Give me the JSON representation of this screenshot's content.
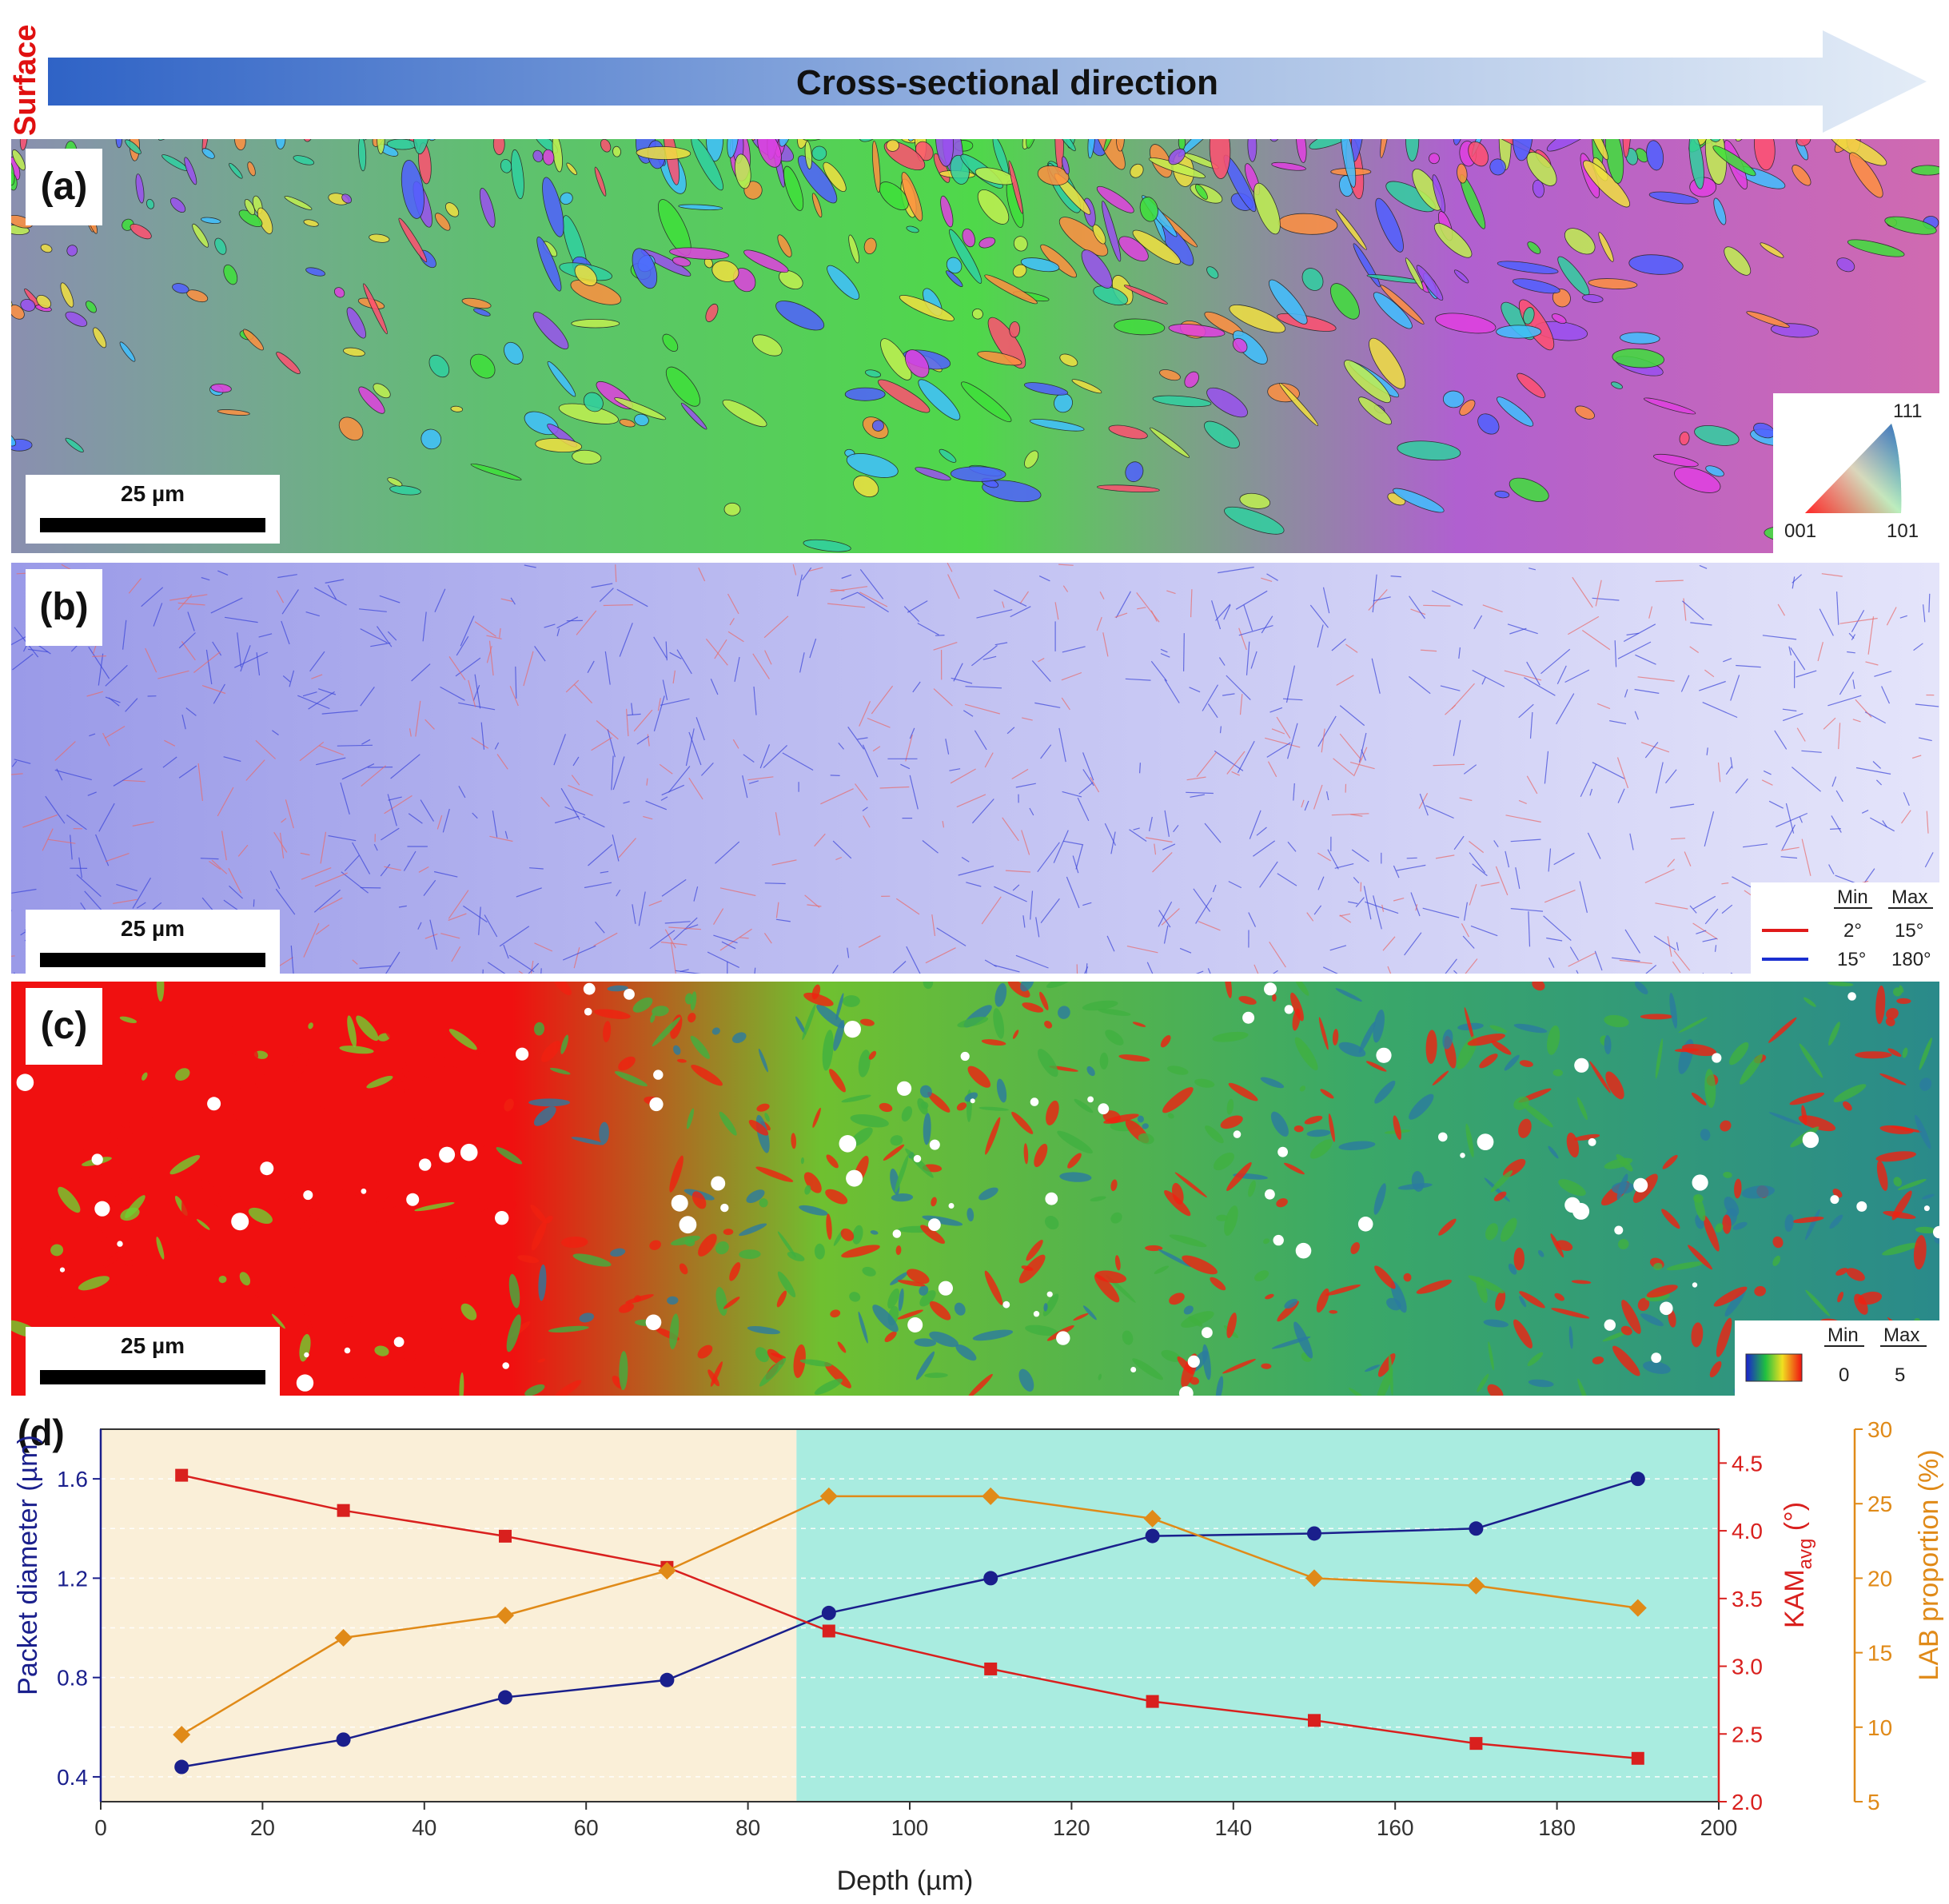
{
  "header": {
    "surface_label": "Surface",
    "arrow_label": "Cross-sectional direction"
  },
  "colors": {
    "arrow_start": "#2f63c6",
    "arrow_end": "#e3ecf7",
    "surface_red": "#e01010",
    "packet_blue": "#1a1f8c",
    "kam_red": "#d9201e",
    "lab_orange": "#e08a18",
    "fine_zone_bg": "#faefd8",
    "coarse_zone_bg": "#a9ece0"
  },
  "panels": {
    "a": {
      "letter": "(a)",
      "scalebar": "25 µm",
      "ipf_legend": {
        "top": "111",
        "left": "001",
        "right": "101"
      }
    },
    "b": {
      "letter": "(b)",
      "scalebar": "25 µm",
      "legend": {
        "col_min": "Min",
        "col_max": "Max",
        "rows": [
          {
            "min": "2°",
            "max": "15°",
            "color": "#e01a1a"
          },
          {
            "min": "15°",
            "max": "180°",
            "color": "#1a2fd0"
          }
        ]
      }
    },
    "c": {
      "letter": "(c)",
      "scalebar": "25 µm",
      "legend": {
        "col_min": "Min",
        "col_max": "Max",
        "min": "0",
        "max": "5"
      }
    }
  },
  "chart_data": {
    "type": "line",
    "panel_letter": "(d)",
    "x": [
      10,
      30,
      50,
      70,
      90,
      110,
      130,
      150,
      170,
      190
    ],
    "xlabel": "Depth (µm)",
    "xlim": [
      0,
      200
    ],
    "xticks": [
      0,
      20,
      40,
      60,
      80,
      100,
      120,
      140,
      160,
      180,
      200
    ],
    "zone_split_x": 86,
    "series": [
      {
        "name": "Packet diameter",
        "axis": "left",
        "ylabel": "Packet diameter (µm)",
        "ylim": [
          0.3,
          1.8
        ],
        "yticks": [
          0.4,
          0.8,
          1.2,
          1.6
        ],
        "marker": "circle",
        "color": "#1a1f8c",
        "values": [
          0.44,
          0.55,
          0.72,
          0.79,
          1.06,
          1.2,
          1.37,
          1.38,
          1.4,
          1.6
        ]
      },
      {
        "name": "KAM avg",
        "axis": "right1",
        "ylabel": "KAM",
        "ylabel_sub": "avg",
        "ylabel_unit": " (°)",
        "ylim": [
          2.0,
          4.75
        ],
        "yticks": [
          2.0,
          2.5,
          3.0,
          3.5,
          4.0,
          4.5
        ],
        "marker": "square",
        "color": "#d9201e",
        "values": [
          4.41,
          4.15,
          3.96,
          3.73,
          3.26,
          2.98,
          2.74,
          2.6,
          2.43,
          2.32
        ]
      },
      {
        "name": "LAB proportion",
        "axis": "right2",
        "ylabel": "LAB proportion (%)",
        "ylim": [
          5,
          30
        ],
        "yticks": [
          5,
          10,
          15,
          20,
          25,
          30
        ],
        "marker": "diamond",
        "color": "#e08a18",
        "values": [
          9.5,
          16.0,
          17.5,
          20.5,
          25.5,
          25.5,
          24.0,
          20.0,
          19.5,
          18.0
        ]
      }
    ],
    "grid": "horizontal-dashed"
  }
}
